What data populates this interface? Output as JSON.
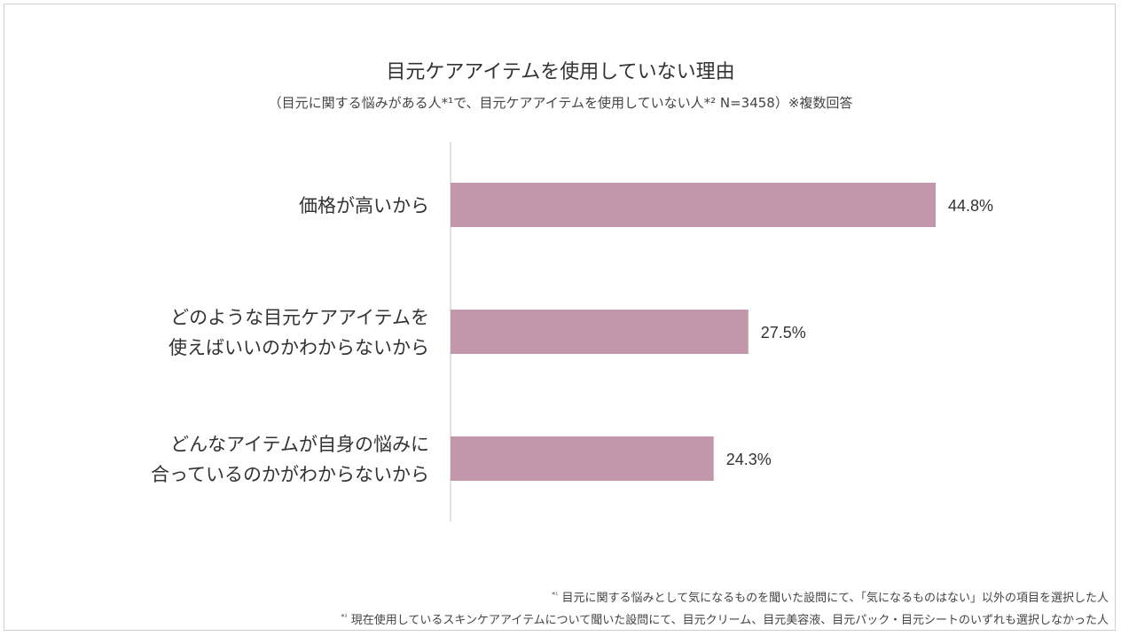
{
  "chart_data": {
    "type": "bar",
    "orientation": "horizontal",
    "title": "目元ケアアイテムを使用していない理由",
    "subtitle": "（目元に関する悩みがある人*¹で、目元ケアアイテムを使用していない人*² N=3458）※複数回答",
    "categories": [
      [
        "価格が高いから"
      ],
      [
        "どのような目元ケアアイテムを",
        "使えばいいのかわからないから"
      ],
      [
        "どんなアイテムが自身の悩みに",
        "合っているのかがわからないから"
      ]
    ],
    "values": [
      44.8,
      27.5,
      24.3
    ],
    "value_labels": [
      "44.8%",
      "27.5%",
      "24.3%"
    ],
    "xlim": [
      0,
      50
    ],
    "grid": false,
    "legend": "none",
    "bar_color": "#c297ab",
    "axis_color": "#d9d9d9"
  },
  "footnotes": [
    {
      "mark": "*¹",
      "text": "目元に関する悩みとして気になるものを聞いた設問にて、「気になるものはない」以外の項目を選択した人"
    },
    {
      "mark": "*²",
      "text": "現在使用しているスキンケアアイテムについて聞いた設問にて、目元クリーム、目元美容液、目元パック・目元シートのいずれも選択しなかった人"
    }
  ]
}
